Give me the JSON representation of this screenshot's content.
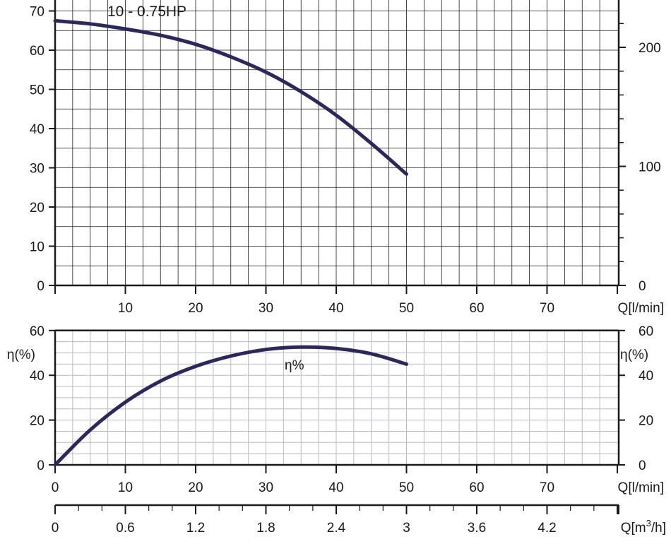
{
  "colors": {
    "curve": "#2b2860",
    "grid_main": "#1a1a1a",
    "grid_light": "#b9b9c9",
    "axis": "#1a1a1a",
    "label_text": "#3a3a6a"
  },
  "chart_data": [
    {
      "type": "line",
      "id": "head-curve",
      "title": "",
      "curve_label": "10 - 0.75HP",
      "xlabel": "Q[l/min]",
      "ylabel": "",
      "xlim": [
        0,
        80
      ],
      "ylim": [
        0,
        70
      ],
      "x_ticks": [
        10,
        20,
        30,
        40,
        50,
        60,
        70
      ],
      "y_ticks": [
        0,
        10,
        20,
        30,
        40,
        50,
        60,
        70
      ],
      "right_axis_ticks": [
        {
          "value": 0,
          "label": "0"
        },
        {
          "value": 100,
          "label": "100"
        },
        {
          "value": 200,
          "label": "200"
        }
      ],
      "right_axis_range": [
        0,
        230
      ],
      "grid": true,
      "series": [
        {
          "x": [
            0,
            5,
            10,
            15,
            20,
            25,
            30,
            35,
            40,
            45,
            50
          ],
          "y": [
            67.5,
            66.7,
            65.4,
            63.8,
            61.5,
            58.3,
            54.4,
            49.4,
            43.4,
            36.2,
            28.4
          ]
        }
      ]
    },
    {
      "type": "line",
      "id": "efficiency-curve",
      "title": "",
      "curve_label": "η%",
      "xlabel": "Q[l/min]",
      "ylabel": "η(%)",
      "ylabel_right": "η(%)",
      "xlim": [
        0,
        80
      ],
      "ylim": [
        0,
        60
      ],
      "x_ticks": [
        0,
        10,
        20,
        30,
        40,
        50,
        60,
        70
      ],
      "y_ticks": [
        0,
        20,
        40,
        60
      ],
      "grid": true,
      "series": [
        {
          "x": [
            0,
            5,
            10,
            15,
            20,
            25,
            30,
            35,
            40,
            45,
            50
          ],
          "y": [
            0,
            15.6,
            28,
            37.4,
            44,
            48.6,
            51.5,
            52.6,
            52,
            49.6,
            45
          ]
        }
      ]
    },
    {
      "type": "axis",
      "id": "flow-m3h-axis",
      "xlabel_main": "Q[m",
      "xlabel_sup": "3",
      "xlabel_tail": "/h]",
      "tick_labels": [
        "0",
        "0.6",
        "1.2",
        "1.8",
        "2.4",
        "3",
        "3.6",
        "4.2"
      ]
    }
  ]
}
